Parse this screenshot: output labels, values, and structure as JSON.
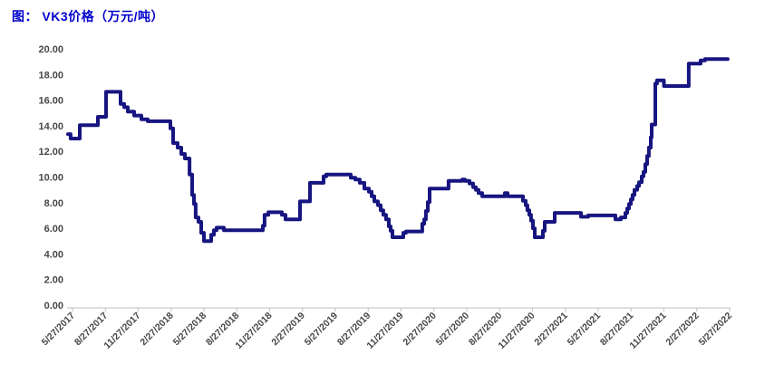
{
  "header": {
    "title": "图： VK3价格（万元/吨）"
  },
  "colors": {
    "title_blue": "#0000CC",
    "line_navy": "#171580",
    "axis_text": "#474747",
    "axis_line": "#C9C9C9",
    "background": "#FFFFFF"
  },
  "chart_data": {
    "type": "line",
    "title": "VK3价格（万元/吨）",
    "series_name": "VK3价格",
    "xlabel": "",
    "ylabel": "",
    "legend": "none",
    "grid": false,
    "ylim": [
      0,
      20
    ],
    "y_tick_labels": [
      "20.00",
      "18.00",
      "16.00",
      "14.00",
      "12.00",
      "10.00",
      "8.00",
      "6.00",
      "4.00",
      "2.00",
      "0.00"
    ],
    "y_tick_values": [
      20,
      18,
      16,
      14,
      12,
      10,
      8,
      6,
      4,
      2,
      0
    ],
    "x_unit": "months since 5/27/2017",
    "x_tick_months": [
      0,
      3,
      6,
      9,
      12,
      15,
      18,
      21,
      24,
      27,
      30,
      33,
      36,
      39,
      42,
      45,
      48,
      51,
      54,
      57,
      60
    ],
    "x_tick_labels": [
      "5/27/2017",
      "8/27/2017",
      "11/27/2017",
      "2/27/2018",
      "5/27/2018",
      "8/27/2018",
      "11/27/2018",
      "2/27/2019",
      "5/27/2019",
      "8/27/2019",
      "11/27/2019",
      "2/27/2020",
      "5/27/2020",
      "8/27/2020",
      "11/27/2020",
      "2/27/2021",
      "5/27/2021",
      "8/27/2021",
      "11/27/2021",
      "2/27/2022",
      "5/27/2022"
    ],
    "series": [
      {
        "name": "VK3价格",
        "points": [
          [
            -0.41,
            13.35
          ],
          [
            -0.17,
            13.0
          ],
          [
            0.66,
            14.05
          ],
          [
            2.32,
            14.7
          ],
          [
            3.06,
            16.65
          ],
          [
            4.39,
            15.7
          ],
          [
            4.72,
            15.45
          ],
          [
            5.05,
            15.1
          ],
          [
            5.63,
            14.8
          ],
          [
            6.29,
            14.5
          ],
          [
            6.87,
            14.35
          ],
          [
            8.94,
            13.8
          ],
          [
            9.19,
            12.65
          ],
          [
            9.6,
            12.3
          ],
          [
            9.93,
            11.8
          ],
          [
            10.26,
            11.45
          ],
          [
            10.68,
            10.2
          ],
          [
            10.92,
            8.6
          ],
          [
            11.09,
            7.9
          ],
          [
            11.25,
            6.85
          ],
          [
            11.5,
            6.5
          ],
          [
            11.75,
            5.65
          ],
          [
            12.0,
            5.0
          ],
          [
            12.66,
            5.5
          ],
          [
            12.91,
            5.85
          ],
          [
            13.16,
            6.05
          ],
          [
            13.82,
            5.85
          ],
          [
            17.38,
            6.2
          ],
          [
            17.54,
            7.05
          ],
          [
            17.88,
            7.25
          ],
          [
            19.12,
            7.05
          ],
          [
            19.45,
            6.7
          ],
          [
            20.77,
            8.1
          ],
          [
            21.68,
            9.55
          ],
          [
            22.92,
            10.05
          ],
          [
            23.17,
            10.2
          ],
          [
            25.41,
            9.95
          ],
          [
            25.82,
            9.8
          ],
          [
            26.23,
            9.55
          ],
          [
            26.65,
            9.1
          ],
          [
            27.06,
            8.85
          ],
          [
            27.31,
            8.5
          ],
          [
            27.56,
            8.1
          ],
          [
            27.89,
            7.8
          ],
          [
            28.14,
            7.4
          ],
          [
            28.38,
            7.05
          ],
          [
            28.63,
            6.7
          ],
          [
            28.88,
            6.15
          ],
          [
            29.05,
            5.8
          ],
          [
            29.21,
            5.3
          ],
          [
            30.21,
            5.65
          ],
          [
            30.45,
            5.75
          ],
          [
            31.94,
            6.35
          ],
          [
            32.11,
            6.7
          ],
          [
            32.27,
            7.35
          ],
          [
            32.44,
            8.05
          ],
          [
            32.61,
            9.1
          ],
          [
            34.34,
            9.7
          ],
          [
            35.59,
            9.8
          ],
          [
            35.83,
            9.7
          ],
          [
            36.25,
            9.5
          ],
          [
            36.58,
            9.2
          ],
          [
            36.83,
            9.0
          ],
          [
            37.08,
            8.75
          ],
          [
            37.41,
            8.5
          ],
          [
            39.48,
            8.75
          ],
          [
            39.72,
            8.5
          ],
          [
            41.13,
            8.15
          ],
          [
            41.38,
            7.8
          ],
          [
            41.54,
            7.4
          ],
          [
            41.71,
            7.05
          ],
          [
            41.87,
            6.6
          ],
          [
            42.04,
            6.0
          ],
          [
            42.21,
            5.3
          ],
          [
            42.95,
            5.8
          ],
          [
            43.12,
            6.5
          ],
          [
            44.03,
            7.2
          ],
          [
            46.43,
            6.9
          ],
          [
            47.09,
            7.0
          ],
          [
            49.57,
            6.7
          ],
          [
            50.07,
            6.85
          ],
          [
            50.48,
            7.2
          ],
          [
            50.65,
            7.55
          ],
          [
            50.81,
            7.9
          ],
          [
            50.98,
            8.25
          ],
          [
            51.14,
            8.6
          ],
          [
            51.31,
            9.0
          ],
          [
            51.56,
            9.3
          ],
          [
            51.72,
            9.6
          ],
          [
            51.97,
            10.05
          ],
          [
            52.14,
            10.4
          ],
          [
            52.3,
            11.0
          ],
          [
            52.47,
            11.65
          ],
          [
            52.63,
            12.3
          ],
          [
            52.8,
            13.1
          ],
          [
            52.88,
            14.1
          ],
          [
            53.21,
            17.3
          ],
          [
            53.37,
            17.55
          ],
          [
            54.0,
            17.1
          ],
          [
            56.27,
            18.85
          ],
          [
            57.35,
            19.1
          ],
          [
            57.76,
            19.2
          ],
          [
            59.83,
            19.2
          ]
        ]
      }
    ]
  }
}
